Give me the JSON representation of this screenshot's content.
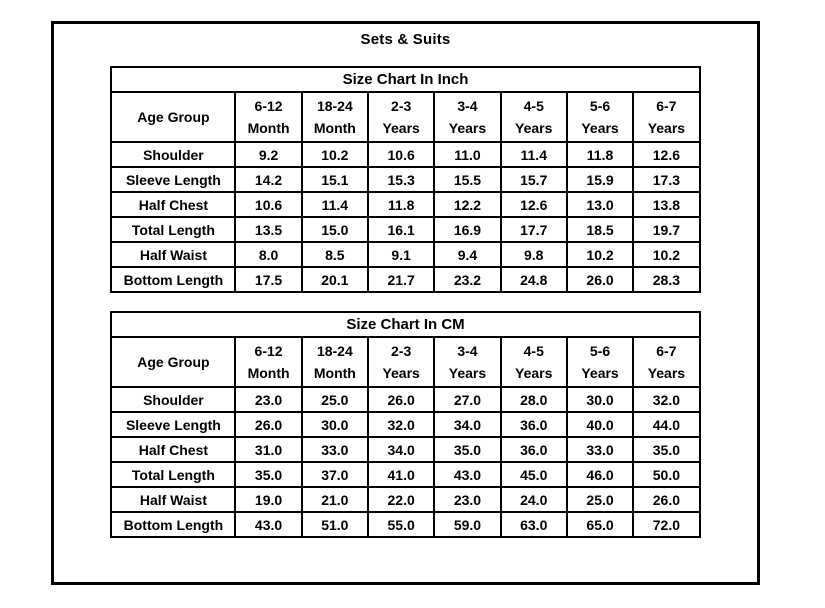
{
  "page": {
    "title": "Sets & Suits"
  },
  "colors": {
    "background": "#ffffff",
    "border": "#000000",
    "text": "#000000"
  },
  "tables": [
    {
      "title": "Size Chart In Inch",
      "row_header": "Age Group",
      "columns": [
        "6-12\nMonth",
        "18-24\nMonth",
        "2-3\nYears",
        "3-4\nYears",
        "4-5\nYears",
        "5-6\nYears",
        "6-7\nYears"
      ],
      "rows": [
        {
          "label": "Shoulder",
          "values": [
            "9.2",
            "10.2",
            "10.6",
            "11.0",
            "11.4",
            "11.8",
            "12.6"
          ]
        },
        {
          "label": "Sleeve Length",
          "values": [
            "14.2",
            "15.1",
            "15.3",
            "15.5",
            "15.7",
            "15.9",
            "17.3"
          ]
        },
        {
          "label": "Half Chest",
          "values": [
            "10.6",
            "11.4",
            "11.8",
            "12.2",
            "12.6",
            "13.0",
            "13.8"
          ]
        },
        {
          "label": "Total Length",
          "values": [
            "13.5",
            "15.0",
            "16.1",
            "16.9",
            "17.7",
            "18.5",
            "19.7"
          ]
        },
        {
          "label": "Half Waist",
          "values": [
            "8.0",
            "8.5",
            "9.1",
            "9.4",
            "9.8",
            "10.2",
            "10.2"
          ]
        },
        {
          "label": "Bottom Length",
          "values": [
            "17.5",
            "20.1",
            "21.7",
            "23.2",
            "24.8",
            "26.0",
            "28.3"
          ]
        }
      ]
    },
    {
      "title": "Size Chart In CM",
      "row_header": "Age Group",
      "columns": [
        "6-12\nMonth",
        "18-24\nMonth",
        "2-3\nYears",
        "3-4\nYears",
        "4-5\nYears",
        "5-6\nYears",
        "6-7\nYears"
      ],
      "rows": [
        {
          "label": "Shoulder",
          "values": [
            "23.0",
            "25.0",
            "26.0",
            "27.0",
            "28.0",
            "30.0",
            "32.0"
          ]
        },
        {
          "label": "Sleeve Length",
          "values": [
            "26.0",
            "30.0",
            "32.0",
            "34.0",
            "36.0",
            "40.0",
            "44.0"
          ]
        },
        {
          "label": "Half Chest",
          "values": [
            "31.0",
            "33.0",
            "34.0",
            "35.0",
            "36.0",
            "33.0",
            "35.0"
          ]
        },
        {
          "label": "Total Length",
          "values": [
            "35.0",
            "37.0",
            "41.0",
            "43.0",
            "45.0",
            "46.0",
            "50.0"
          ]
        },
        {
          "label": "Half Waist",
          "values": [
            "19.0",
            "21.0",
            "22.0",
            "23.0",
            "24.0",
            "25.0",
            "26.0"
          ]
        },
        {
          "label": "Bottom Length",
          "values": [
            "43.0",
            "51.0",
            "55.0",
            "59.0",
            "63.0",
            "65.0",
            "72.0"
          ]
        }
      ]
    }
  ]
}
